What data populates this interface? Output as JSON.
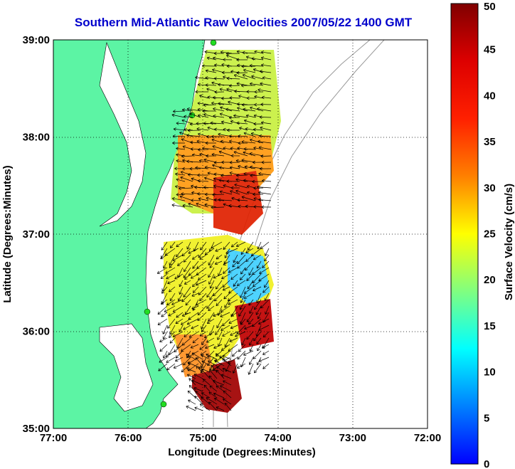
{
  "title": "Southern Mid-Atlantic Raw Velocities 2007/05/22 1400 GMT",
  "chart_data": {
    "type": "heatmap",
    "xlabel": "Longitude (Degrees:Minutes)",
    "ylabel": "Latitude (Degrees:Minutes)",
    "xlim": [
      -77,
      -72
    ],
    "ylim": [
      35,
      39
    ],
    "x_ticks": [
      "77:00",
      "76:00",
      "75:00",
      "74:00",
      "73:00",
      "72:00"
    ],
    "y_ticks": [
      "35:00",
      "36:00",
      "37:00",
      "38:00",
      "39:00"
    ],
    "grid": true,
    "colorbar": {
      "label": "Surface Velocity (cm/s)",
      "min": 0,
      "max": 50,
      "ticks": [
        "0",
        "5",
        "10",
        "15",
        "20",
        "25",
        "30",
        "35",
        "40",
        "45",
        "50"
      ]
    },
    "colors": {
      "land": "#5cf4a4",
      "water": "#ffffff",
      "title": "#0000cc",
      "station": "#22dd22"
    }
  }
}
